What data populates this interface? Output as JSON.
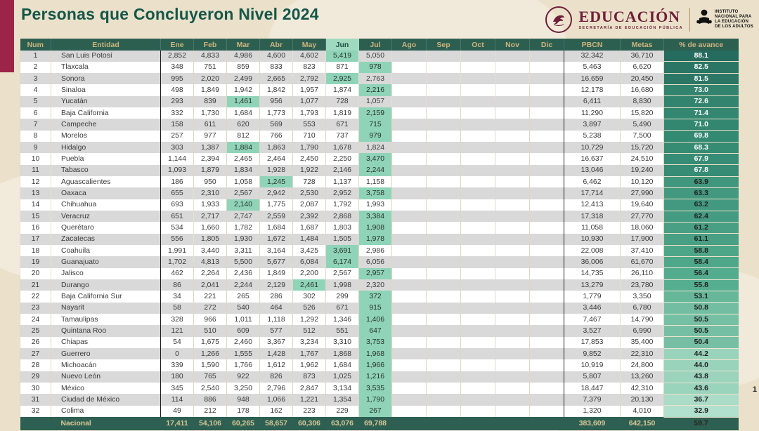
{
  "page": {
    "title": "Personas que Concluyeron Nivel 2024",
    "page_number": "1"
  },
  "logos": {
    "educacion": {
      "wordmark": "EDUCACIÓN",
      "subtitle": "SECRETARÍA DE EDUCACIÓN PÚBLICA"
    },
    "inea": {
      "line1": "INSTITUTO",
      "line2": "NACIONAL PARA",
      "line3": "LA EDUCACIÓN",
      "line4": "DE LOS ADULTOS"
    }
  },
  "colors": {
    "accent_maroon": "#9D2449",
    "title_green": "#15564A",
    "header_green": "#2D5F51",
    "highlight_mint": "#8FD4B8",
    "zebra_gray": "#D9D9D9",
    "avance_scale_high": "#266C5E",
    "avance_scale_low": "#B2E0CE"
  },
  "table": {
    "headers": [
      "Num",
      "Entidad",
      "Ene",
      "Feb",
      "Mar",
      "Abr",
      "May",
      "Jun",
      "Jul",
      "Ago",
      "Sep",
      "Oct",
      "Nov",
      "Dic",
      "PBCN",
      "Metas",
      "% de avance"
    ],
    "highlighted_header": "Jun",
    "rows": [
      {
        "num": "1",
        "entidad": "San Luis Potosí",
        "months": [
          "2,852",
          "4,833",
          "4,986",
          "4,600",
          "4,602",
          "5,419",
          "5,050"
        ],
        "pbcn": "32,342",
        "metas": "36,710",
        "avance": "88.1"
      },
      {
        "num": "2",
        "entidad": "Tlaxcala",
        "months": [
          "348",
          "751",
          "859",
          "833",
          "823",
          "871",
          "978"
        ],
        "pbcn": "5,463",
        "metas": "6,620",
        "avance": "82.5"
      },
      {
        "num": "3",
        "entidad": "Sonora",
        "months": [
          "995",
          "2,020",
          "2,499",
          "2,665",
          "2,792",
          "2,925",
          "2,763"
        ],
        "pbcn": "16,659",
        "metas": "20,450",
        "avance": "81.5"
      },
      {
        "num": "4",
        "entidad": "Sinaloa",
        "months": [
          "498",
          "1,849",
          "1,942",
          "1,842",
          "1,957",
          "1,874",
          "2,216"
        ],
        "pbcn": "12,178",
        "metas": "16,680",
        "avance": "73.0"
      },
      {
        "num": "5",
        "entidad": "Yucatán",
        "months": [
          "293",
          "839",
          "1,461",
          "956",
          "1,077",
          "728",
          "1,057"
        ],
        "pbcn": "6,411",
        "metas": "8,830",
        "avance": "72.6"
      },
      {
        "num": "6",
        "entidad": "Baja California",
        "months": [
          "332",
          "1,730",
          "1,684",
          "1,773",
          "1,793",
          "1,819",
          "2,159"
        ],
        "pbcn": "11,290",
        "metas": "15,820",
        "avance": "71.4"
      },
      {
        "num": "7",
        "entidad": "Campeche",
        "months": [
          "158",
          "611",
          "620",
          "569",
          "553",
          "671",
          "715"
        ],
        "pbcn": "3,897",
        "metas": "5,490",
        "avance": "71.0"
      },
      {
        "num": "8",
        "entidad": "Morelos",
        "months": [
          "257",
          "977",
          "812",
          "766",
          "710",
          "737",
          "979"
        ],
        "pbcn": "5,238",
        "metas": "7,500",
        "avance": "69.8"
      },
      {
        "num": "9",
        "entidad": "Hidalgo",
        "months": [
          "303",
          "1,387",
          "1,884",
          "1,863",
          "1,790",
          "1,678",
          "1,824"
        ],
        "pbcn": "10,729",
        "metas": "15,720",
        "avance": "68.3"
      },
      {
        "num": "10",
        "entidad": "Puebla",
        "months": [
          "1,144",
          "2,394",
          "2,465",
          "2,464",
          "2,450",
          "2,250",
          "3,470"
        ],
        "pbcn": "16,637",
        "metas": "24,510",
        "avance": "67.9"
      },
      {
        "num": "11",
        "entidad": "Tabasco",
        "months": [
          "1,093",
          "1,879",
          "1,834",
          "1,928",
          "1,922",
          "2,146",
          "2,244"
        ],
        "pbcn": "13,046",
        "metas": "19,240",
        "avance": "67.8"
      },
      {
        "num": "12",
        "entidad": "Aguascalientes",
        "months": [
          "186",
          "950",
          "1,058",
          "1,245",
          "728",
          "1,137",
          "1,158"
        ],
        "pbcn": "6,462",
        "metas": "10,120",
        "avance": "63.9"
      },
      {
        "num": "13",
        "entidad": "Oaxaca",
        "months": [
          "655",
          "2,310",
          "2,567",
          "2,942",
          "2,530",
          "2,952",
          "3,758"
        ],
        "pbcn": "17,714",
        "metas": "27,990",
        "avance": "63.3"
      },
      {
        "num": "14",
        "entidad": "Chihuahua",
        "months": [
          "693",
          "1,933",
          "2,140",
          "1,775",
          "2,087",
          "1,792",
          "1,993"
        ],
        "pbcn": "12,413",
        "metas": "19,640",
        "avance": "63.2"
      },
      {
        "num": "15",
        "entidad": "Veracruz",
        "months": [
          "651",
          "2,717",
          "2,747",
          "2,559",
          "2,392",
          "2,868",
          "3,384"
        ],
        "pbcn": "17,318",
        "metas": "27,770",
        "avance": "62.4"
      },
      {
        "num": "16",
        "entidad": "Querétaro",
        "months": [
          "534",
          "1,660",
          "1,782",
          "1,684",
          "1,687",
          "1,803",
          "1,908"
        ],
        "pbcn": "11,058",
        "metas": "18,060",
        "avance": "61.2"
      },
      {
        "num": "17",
        "entidad": "Zacatecas",
        "months": [
          "556",
          "1,805",
          "1,930",
          "1,672",
          "1,484",
          "1,505",
          "1,978"
        ],
        "pbcn": "10,930",
        "metas": "17,900",
        "avance": "61.1"
      },
      {
        "num": "18",
        "entidad": "Coahuila",
        "months": [
          "1,991",
          "3,440",
          "3,311",
          "3,164",
          "3,425",
          "3,691",
          "2,986"
        ],
        "pbcn": "22,008",
        "metas": "37,410",
        "avance": "58.8"
      },
      {
        "num": "19",
        "entidad": "Guanajuato",
        "months": [
          "1,702",
          "4,813",
          "5,500",
          "5,677",
          "6,084",
          "6,174",
          "6,056"
        ],
        "pbcn": "36,006",
        "metas": "61,670",
        "avance": "58.4"
      },
      {
        "num": "20",
        "entidad": "Jalisco",
        "months": [
          "462",
          "2,264",
          "2,436",
          "1,849",
          "2,200",
          "2,567",
          "2,957"
        ],
        "pbcn": "14,735",
        "metas": "26,110",
        "avance": "56.4"
      },
      {
        "num": "21",
        "entidad": "Durango",
        "months": [
          "86",
          "2,041",
          "2,244",
          "2,129",
          "2,461",
          "1,998",
          "2,320"
        ],
        "pbcn": "13,279",
        "metas": "23,780",
        "avance": "55.8"
      },
      {
        "num": "22",
        "entidad": "Baja California Sur",
        "months": [
          "34",
          "221",
          "265",
          "286",
          "302",
          "299",
          "372"
        ],
        "pbcn": "1,779",
        "metas": "3,350",
        "avance": "53.1"
      },
      {
        "num": "23",
        "entidad": "Nayarit",
        "months": [
          "58",
          "272",
          "540",
          "464",
          "526",
          "671",
          "915"
        ],
        "pbcn": "3,446",
        "metas": "6,780",
        "avance": "50.8"
      },
      {
        "num": "24",
        "entidad": "Tamaulipas",
        "months": [
          "328",
          "966",
          "1,011",
          "1,118",
          "1,292",
          "1,346",
          "1,406"
        ],
        "pbcn": "7,467",
        "metas": "14,790",
        "avance": "50.5"
      },
      {
        "num": "25",
        "entidad": "Quintana Roo",
        "months": [
          "121",
          "510",
          "609",
          "577",
          "512",
          "551",
          "647"
        ],
        "pbcn": "3,527",
        "metas": "6,990",
        "avance": "50.5"
      },
      {
        "num": "26",
        "entidad": "Chiapas",
        "months": [
          "54",
          "1,675",
          "2,460",
          "3,367",
          "3,234",
          "3,310",
          "3,753"
        ],
        "pbcn": "17,853",
        "metas": "35,400",
        "avance": "50.4"
      },
      {
        "num": "27",
        "entidad": "Guerrero",
        "months": [
          "0",
          "1,266",
          "1,555",
          "1,428",
          "1,767",
          "1,868",
          "1,968"
        ],
        "pbcn": "9,852",
        "metas": "22,310",
        "avance": "44.2"
      },
      {
        "num": "28",
        "entidad": "Michoacán",
        "months": [
          "339",
          "1,590",
          "1,766",
          "1,612",
          "1,962",
          "1,684",
          "1,966"
        ],
        "pbcn": "10,919",
        "metas": "24,800",
        "avance": "44.0"
      },
      {
        "num": "29",
        "entidad": "Nuevo León",
        "months": [
          "180",
          "765",
          "922",
          "826",
          "873",
          "1,025",
          "1,216"
        ],
        "pbcn": "5,807",
        "metas": "13,260",
        "avance": "43.8"
      },
      {
        "num": "30",
        "entidad": "México",
        "months": [
          "345",
          "2,540",
          "3,250",
          "2,796",
          "2,847",
          "3,134",
          "3,535"
        ],
        "pbcn": "18,447",
        "metas": "42,310",
        "avance": "43.6"
      },
      {
        "num": "31",
        "entidad": "Ciudad de México",
        "months": [
          "114",
          "886",
          "948",
          "1,066",
          "1,221",
          "1,354",
          "1,790"
        ],
        "pbcn": "7,379",
        "metas": "20,130",
        "avance": "36.7"
      },
      {
        "num": "32",
        "entidad": "Colima",
        "months": [
          "49",
          "212",
          "178",
          "162",
          "223",
          "229",
          "267"
        ],
        "pbcn": "1,320",
        "metas": "4,010",
        "avance": "32.9"
      }
    ],
    "total": {
      "label": "Nacional",
      "months": [
        "17,411",
        "54,106",
        "60,265",
        "58,657",
        "60,306",
        "63,076",
        "69,788"
      ],
      "pbcn": "383,609",
      "metas": "642,150",
      "avance": "59.7"
    }
  }
}
